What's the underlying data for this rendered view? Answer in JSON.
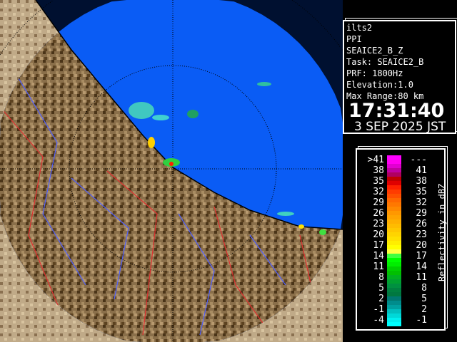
{
  "info": {
    "lines": [
      "ilts2",
      "PPI",
      "SEAICE2_B_Z",
      "Task: SEAICE2_B",
      "PRF: 1800Hz",
      "Elevation:1.0",
      "Max Range:80 km"
    ],
    "time": "17:31:40",
    "date": "3 SEP 2025 JST"
  },
  "legend": {
    "unit": "Reflectivity in dBZ",
    "left_labels": [
      ">41",
      "38",
      "35",
      "32",
      "29",
      "26",
      "23",
      "20",
      "17",
      "14",
      "11",
      "8",
      "5",
      "2",
      "-1",
      "-4"
    ],
    "right_labels": [
      "---",
      "41",
      "38",
      "35",
      "32",
      "29",
      "26",
      "23",
      "20",
      "17",
      "14",
      "11",
      "8",
      "5",
      "2",
      "-1"
    ],
    "colors": [
      "#ff00ff",
      "#ff00f0",
      "#e000d0",
      "#c000a0",
      "#b00060",
      "#c00000",
      "#e00000",
      "#ff2000",
      "#ff3c00",
      "#ff5000",
      "#ff6800",
      "#ff7800",
      "#ff8800",
      "#ff9800",
      "#ffa400",
      "#ffb000",
      "#ffbc00",
      "#ffc800",
      "#ffd400",
      "#ffe000",
      "#ffee00",
      "#ffff00",
      "#ffff40",
      "#40ff40",
      "#00ff00",
      "#00ee00",
      "#00d000",
      "#00c000",
      "#00b020",
      "#00a030",
      "#009040",
      "#008040",
      "#007840",
      "#007870",
      "#008c8c",
      "#00a0a0",
      "#00c0c0",
      "#00d8d8",
      "#00f0f0",
      "#00ffff"
    ]
  },
  "map": {
    "sea_color": "#0a5cf5",
    "land_color": "#8a6f4a",
    "range_km": 80
  }
}
